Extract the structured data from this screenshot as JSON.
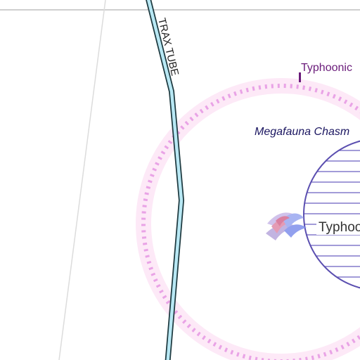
{
  "map": {
    "tube_label": "TRAX TUBE",
    "region_label": "Typhoonic",
    "zone_label": "Megafauna Chasm",
    "location_label": "Typhoon"
  },
  "colors": {
    "tube_fill": "#b8e8f4",
    "tube_outline": "#1e3a40",
    "zone_ring": "#e9a3e6",
    "zone_glow": "#fde9f7",
    "region_text": "#6a1b7a",
    "zone_text": "#1a1560",
    "location_stroke": "#5b4fb0",
    "location_hatch": "#6b5fc0"
  },
  "icons": [
    "zone-marker-icon",
    "storm-swirl-icon"
  ]
}
